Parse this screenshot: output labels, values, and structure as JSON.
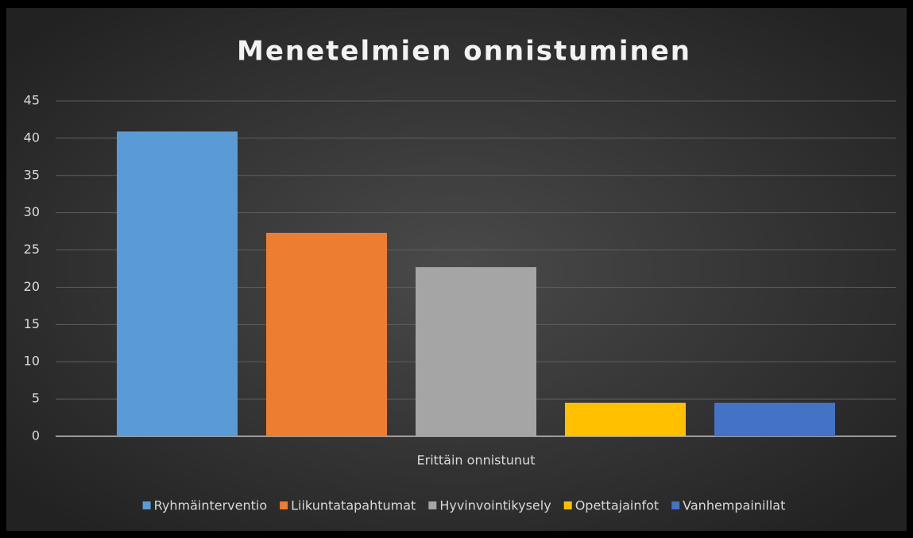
{
  "chart_data": {
    "type": "bar",
    "title": "Menetelmien onnistuminen",
    "categories": [
      "Erittäin onnistunut"
    ],
    "series": [
      {
        "name": "Ryhmäinterventio",
        "color": "#5b9bd5",
        "values": [
          40.9
        ]
      },
      {
        "name": "Liikuntatapahtumat",
        "color": "#ed7d31",
        "values": [
          27.3
        ]
      },
      {
        "name": "Hyvinvointikysely",
        "color": "#a5a5a5",
        "values": [
          22.7
        ]
      },
      {
        "name": "Opettajainfot",
        "color": "#ffc000",
        "values": [
          4.5
        ]
      },
      {
        "name": "Vanhempainillat",
        "color": "#4472c4",
        "values": [
          4.5
        ]
      }
    ],
    "ylim": [
      0,
      45
    ],
    "yticks": [
      0,
      5,
      10,
      15,
      20,
      25,
      30,
      35,
      40,
      45
    ],
    "grid": true,
    "legend": "bottom"
  }
}
